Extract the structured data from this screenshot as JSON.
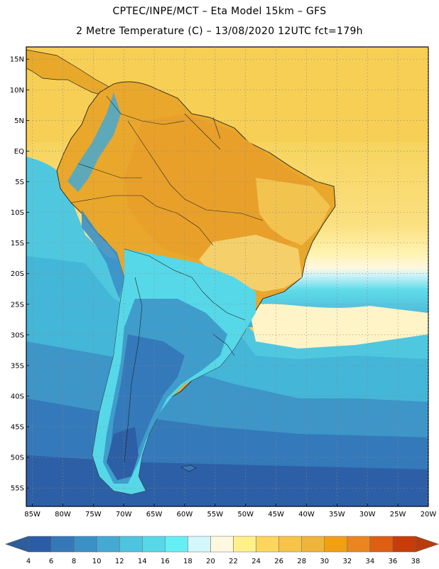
{
  "header": {
    "title_line1": "CPTEC/INPE/MCT –  Eta Model 15km – GFS",
    "title_line2": "2 Metre Temperature (C) – 13/08/2020 12UTC fct=179h"
  },
  "map": {
    "lat_labels": [
      "15N",
      "10N",
      "5N",
      "EQ",
      "5S",
      "10S",
      "15S",
      "20S",
      "25S",
      "30S",
      "35S",
      "40S",
      "45S",
      "50S",
      "55S"
    ],
    "lat_values": [
      15,
      10,
      5,
      0,
      -5,
      -10,
      -15,
      -20,
      -25,
      -30,
      -35,
      -40,
      -45,
      -50,
      -55
    ],
    "lon_labels": [
      "85W",
      "80W",
      "75W",
      "70W",
      "65W",
      "60W",
      "55W",
      "50W",
      "45W",
      "40W",
      "35W",
      "30W",
      "25W",
      "20W"
    ],
    "lon_values": [
      -85,
      -80,
      -75,
      -70,
      -65,
      -60,
      -55,
      -50,
      -45,
      -40,
      -35,
      -30,
      -25,
      -20
    ],
    "lat_range": [
      -58,
      17
    ],
    "lon_range": [
      -86,
      -20
    ]
  },
  "colorbar": {
    "colors": [
      "#2b5da6",
      "#3478b8",
      "#3b90c6",
      "#44a9d3",
      "#4ec4de",
      "#56d8e8",
      "#66eef5",
      "#d4f7fb",
      "#fff8e0",
      "#fff08a",
      "#fcd65a",
      "#f7c448",
      "#efb43a",
      "#f1a012",
      "#ea8520",
      "#de5e12",
      "#c83c0a"
    ],
    "low_color": "#2d5d9c",
    "high_color": "#b83c0e",
    "tick_labels": [
      "4",
      "6",
      "8",
      "10",
      "12",
      "14",
      "16",
      "18",
      "20",
      "22",
      "24",
      "26",
      "28",
      "30",
      "32",
      "34",
      "36",
      "38"
    ]
  }
}
